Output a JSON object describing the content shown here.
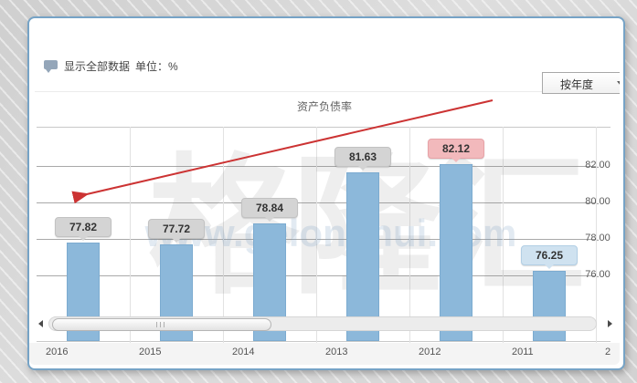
{
  "header": {
    "show_all_data_label": "显示全部数据",
    "unit_label": "单位：%",
    "period_dropdown_value": "按年度"
  },
  "chart_data": {
    "type": "bar",
    "title": "资产负债率",
    "categories": [
      "2016",
      "2015",
      "2014",
      "2013",
      "2012",
      "2011"
    ],
    "values": [
      77.82,
      77.72,
      78.84,
      81.63,
      82.12,
      76.25
    ],
    "value_labels": [
      "77.82",
      "77.72",
      "78.84",
      "81.63",
      "82.12",
      "76.25"
    ],
    "label_styles": [
      "gray",
      "gray",
      "gray",
      "gray",
      "pink",
      "blue"
    ],
    "y_ticks": [
      82,
      80,
      78,
      76
    ],
    "y_tick_labels": [
      "82.00",
      "80.00",
      "78.00",
      "76.00"
    ],
    "y_axis_side": "right",
    "ylim_visible": [
      72.4,
      84.15
    ],
    "next_year_clipped": "2",
    "grid": true,
    "legend": "none",
    "annotation": {
      "type": "arrow",
      "direction": "from upper-right down-left to first bar label",
      "color": "#cc3333"
    }
  },
  "watermark": {
    "brand": "格隆汇",
    "site": "www.gelonghui.com"
  },
  "colors": {
    "bar_fill": "#8cb8da",
    "bar_border": "#7cabd0",
    "panel_border": "#76a3c6",
    "callout_gray": "#d4d4d4",
    "callout_pink": "#f2b9bc",
    "callout_blue": "#cfe2f0",
    "arrow": "#cc3333",
    "gridline": "#a9a9a9"
  }
}
